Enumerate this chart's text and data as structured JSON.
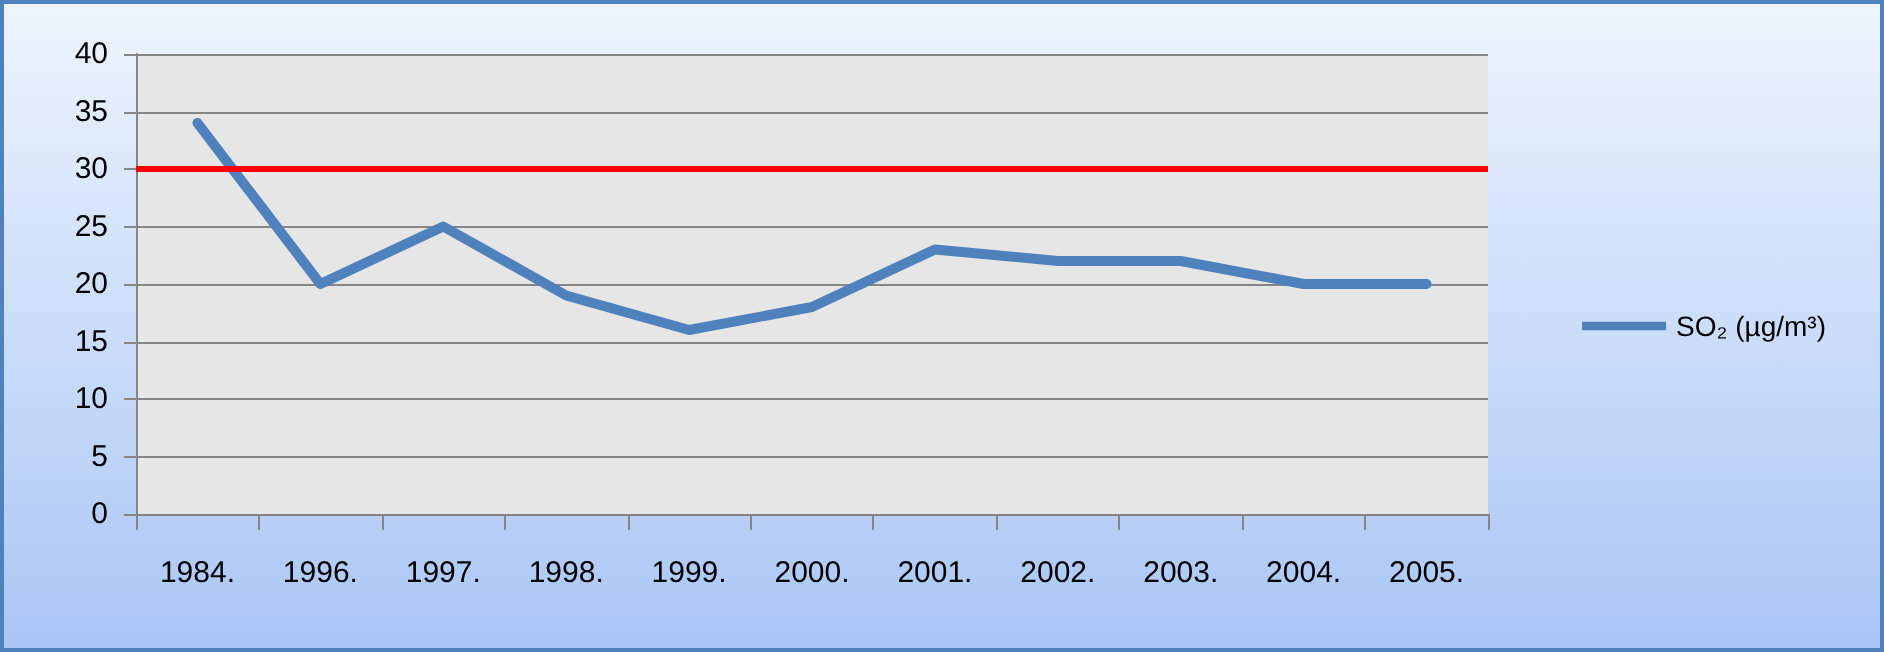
{
  "chart_data": {
    "type": "line",
    "categories": [
      "1984.",
      "1996.",
      "1997.",
      "1998.",
      "1999.",
      "2000.",
      "2001.",
      "2002.",
      "2003.",
      "2004.",
      "2005."
    ],
    "series": [
      {
        "name": "SO₂ (µg/m³)",
        "color": "#4f81bd",
        "values": [
          34,
          20,
          25,
          19,
          16,
          18,
          23,
          22,
          22,
          20,
          20
        ]
      }
    ],
    "ylim": [
      0,
      40
    ],
    "yticks": [
      0,
      5,
      10,
      15,
      20,
      25,
      30,
      35,
      40
    ],
    "grid": "y",
    "legend": "right",
    "marker": "none",
    "line_style": "solid",
    "ref_lines": [
      {
        "axis": "y",
        "value": 30,
        "color": "#ff0000",
        "line_style": "solid"
      }
    ]
  }
}
